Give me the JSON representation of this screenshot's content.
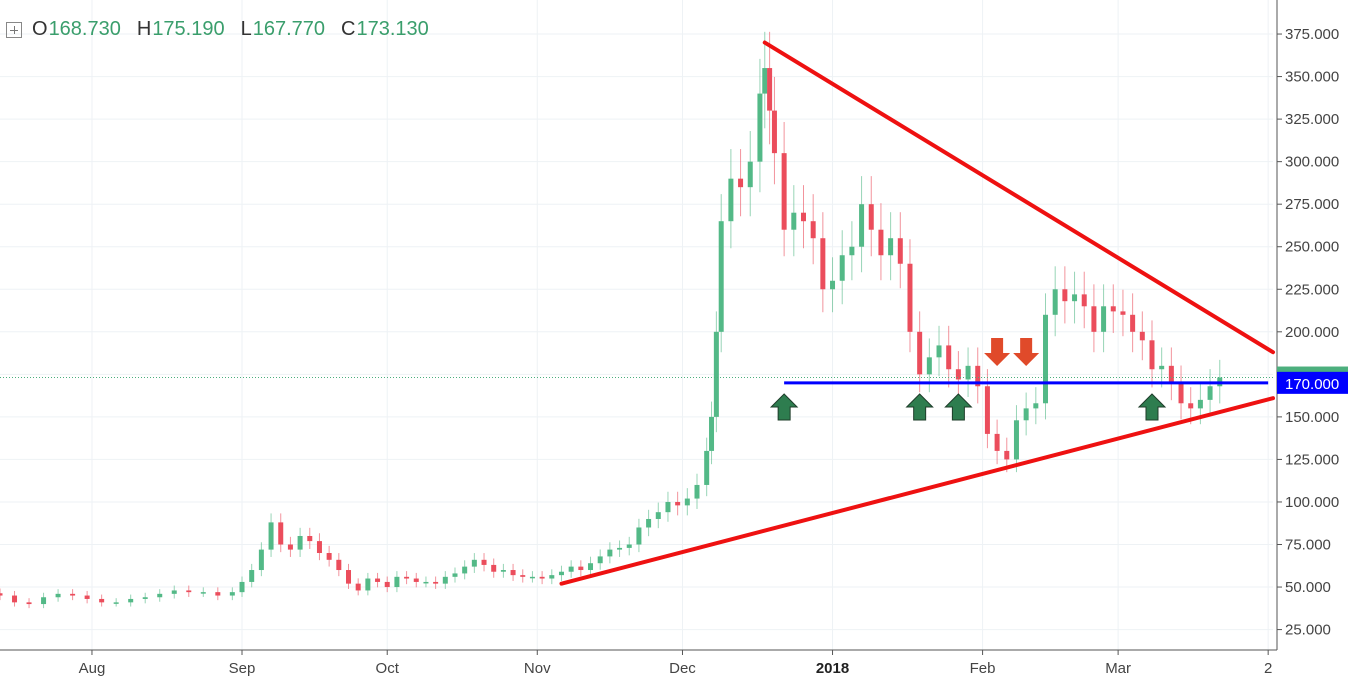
{
  "ohlc_legend": {
    "open_label": "O",
    "open": "168.730",
    "high_label": "H",
    "high": "175.190",
    "low_label": "L",
    "low": "167.770",
    "close_label": "C",
    "close": "173.130"
  },
  "chart_data": {
    "type": "candlestick",
    "y_tick_labels": [
      "25.000",
      "50.000",
      "75.000",
      "100.000",
      "125.000",
      "150.000",
      "175.000",
      "200.000",
      "225.000",
      "250.000",
      "275.000",
      "300.000",
      "325.000",
      "350.000",
      "375.000"
    ],
    "ylim": [
      13,
      395
    ],
    "x_tick_labels": [
      {
        "label": "Aug",
        "date": "2017-08-01"
      },
      {
        "label": "Sep",
        "date": "2017-09-01"
      },
      {
        "label": "Oct",
        "date": "2017-10-01"
      },
      {
        "label": "Nov",
        "date": "2017-11-01"
      },
      {
        "label": "Dec",
        "date": "2017-12-01"
      },
      {
        "label": "2018",
        "date": "2018-01-01",
        "bold": true
      },
      {
        "label": "Feb",
        "date": "2018-02-01"
      },
      {
        "label": "Mar",
        "date": "2018-03-01"
      },
      {
        "label": "2",
        "date": "2018-04-01"
      }
    ],
    "x_range": [
      "2017-07-13",
      "2018-04-02"
    ],
    "last_price": {
      "value": 173.13,
      "label": "173.130",
      "color": "#4caf7d"
    },
    "support_level": {
      "value": 170.0,
      "label": "170.000",
      "color": "#0000ff",
      "start": "2017-12-22",
      "end": "2018-04-01"
    },
    "trend_lines": [
      {
        "name": "resistance",
        "color": "#ee1111",
        "from": {
          "date": "2017-12-18",
          "value": 370
        },
        "to": {
          "date": "2018-04-02",
          "value": 188
        }
      },
      {
        "name": "support",
        "color": "#ee1111",
        "from": {
          "date": "2017-11-06",
          "value": 52
        },
        "to": {
          "date": "2018-04-02",
          "value": 161
        }
      }
    ],
    "arrows": [
      {
        "direction": "up",
        "date": "2017-12-22",
        "color": "#2e7d4f"
      },
      {
        "direction": "up",
        "date": "2018-01-19",
        "color": "#2e7d4f"
      },
      {
        "direction": "up",
        "date": "2018-01-27",
        "color": "#2e7d4f"
      },
      {
        "direction": "down",
        "date": "2018-02-04",
        "color": "#e04a2a"
      },
      {
        "direction": "down",
        "date": "2018-02-10",
        "color": "#e04a2a"
      },
      {
        "direction": "up",
        "date": "2018-03-08",
        "color": "#2e7d4f"
      }
    ],
    "colors": {
      "up": "#53b987",
      "down": "#eb4d5c",
      "grid": "#eef2f5",
      "axis": "#555555"
    },
    "close_series": [
      [
        "2017-07-13",
        45
      ],
      [
        "2017-07-16",
        41
      ],
      [
        "2017-07-19",
        40
      ],
      [
        "2017-07-22",
        44
      ],
      [
        "2017-07-25",
        46
      ],
      [
        "2017-07-28",
        45
      ],
      [
        "2017-07-31",
        43
      ],
      [
        "2017-08-03",
        41
      ],
      [
        "2017-08-06",
        41
      ],
      [
        "2017-08-09",
        43
      ],
      [
        "2017-08-12",
        44
      ],
      [
        "2017-08-15",
        46
      ],
      [
        "2017-08-18",
        48
      ],
      [
        "2017-08-21",
        47
      ],
      [
        "2017-08-24",
        47
      ],
      [
        "2017-08-27",
        45
      ],
      [
        "2017-08-30",
        47
      ],
      [
        "2017-09-01",
        53
      ],
      [
        "2017-09-03",
        60
      ],
      [
        "2017-09-05",
        72
      ],
      [
        "2017-09-07",
        88
      ],
      [
        "2017-09-09",
        75
      ],
      [
        "2017-09-11",
        72
      ],
      [
        "2017-09-13",
        80
      ],
      [
        "2017-09-15",
        77
      ],
      [
        "2017-09-17",
        70
      ],
      [
        "2017-09-19",
        66
      ],
      [
        "2017-09-21",
        60
      ],
      [
        "2017-09-23",
        52
      ],
      [
        "2017-09-25",
        48
      ],
      [
        "2017-09-27",
        55
      ],
      [
        "2017-09-29",
        53
      ],
      [
        "2017-10-01",
        50
      ],
      [
        "2017-10-03",
        56
      ],
      [
        "2017-10-05",
        55
      ],
      [
        "2017-10-07",
        53
      ],
      [
        "2017-10-09",
        53
      ],
      [
        "2017-10-11",
        52
      ],
      [
        "2017-10-13",
        56
      ],
      [
        "2017-10-15",
        58
      ],
      [
        "2017-10-17",
        62
      ],
      [
        "2017-10-19",
        66
      ],
      [
        "2017-10-21",
        63
      ],
      [
        "2017-10-23",
        59
      ],
      [
        "2017-10-25",
        60
      ],
      [
        "2017-10-27",
        57
      ],
      [
        "2017-10-29",
        56
      ],
      [
        "2017-10-31",
        56
      ],
      [
        "2017-11-02",
        55
      ],
      [
        "2017-11-04",
        57
      ],
      [
        "2017-11-06",
        59
      ],
      [
        "2017-11-08",
        62
      ],
      [
        "2017-11-10",
        60
      ],
      [
        "2017-11-12",
        64
      ],
      [
        "2017-11-14",
        68
      ],
      [
        "2017-11-16",
        72
      ],
      [
        "2017-11-18",
        73
      ],
      [
        "2017-11-20",
        75
      ],
      [
        "2017-11-22",
        85
      ],
      [
        "2017-11-24",
        90
      ],
      [
        "2017-11-26",
        94
      ],
      [
        "2017-11-28",
        100
      ],
      [
        "2017-11-30",
        98
      ],
      [
        "2017-12-02",
        102
      ],
      [
        "2017-12-04",
        110
      ],
      [
        "2017-12-06",
        130
      ],
      [
        "2017-12-07",
        150
      ],
      [
        "2017-12-08",
        200
      ],
      [
        "2017-12-09",
        265
      ],
      [
        "2017-12-11",
        290
      ],
      [
        "2017-12-13",
        285
      ],
      [
        "2017-12-15",
        300
      ],
      [
        "2017-12-17",
        340
      ],
      [
        "2017-12-18",
        355
      ],
      [
        "2017-12-19",
        330
      ],
      [
        "2017-12-20",
        305
      ],
      [
        "2017-12-22",
        260
      ],
      [
        "2017-12-24",
        270
      ],
      [
        "2017-12-26",
        265
      ],
      [
        "2017-12-28",
        255
      ],
      [
        "2017-12-30",
        225
      ],
      [
        "2018-01-01",
        230
      ],
      [
        "2018-01-03",
        245
      ],
      [
        "2018-01-05",
        250
      ],
      [
        "2018-01-07",
        275
      ],
      [
        "2018-01-09",
        260
      ],
      [
        "2018-01-11",
        245
      ],
      [
        "2018-01-13",
        255
      ],
      [
        "2018-01-15",
        240
      ],
      [
        "2018-01-17",
        200
      ],
      [
        "2018-01-19",
        175
      ],
      [
        "2018-01-21",
        185
      ],
      [
        "2018-01-23",
        192
      ],
      [
        "2018-01-25",
        178
      ],
      [
        "2018-01-27",
        172
      ],
      [
        "2018-01-29",
        180
      ],
      [
        "2018-01-31",
        168
      ],
      [
        "2018-02-02",
        140
      ],
      [
        "2018-02-04",
        130
      ],
      [
        "2018-02-06",
        125
      ],
      [
        "2018-02-08",
        148
      ],
      [
        "2018-02-10",
        155
      ],
      [
        "2018-02-12",
        158
      ],
      [
        "2018-02-14",
        210
      ],
      [
        "2018-02-16",
        225
      ],
      [
        "2018-02-18",
        218
      ],
      [
        "2018-02-20",
        222
      ],
      [
        "2018-02-22",
        215
      ],
      [
        "2018-02-24",
        200
      ],
      [
        "2018-02-26",
        215
      ],
      [
        "2018-02-28",
        212
      ],
      [
        "2018-03-02",
        210
      ],
      [
        "2018-03-04",
        200
      ],
      [
        "2018-03-06",
        195
      ],
      [
        "2018-03-08",
        178
      ],
      [
        "2018-03-10",
        180
      ],
      [
        "2018-03-12",
        170
      ],
      [
        "2018-03-14",
        158
      ],
      [
        "2018-03-16",
        155
      ],
      [
        "2018-03-18",
        160
      ],
      [
        "2018-03-20",
        168
      ],
      [
        "2018-03-22",
        173.13
      ]
    ]
  }
}
